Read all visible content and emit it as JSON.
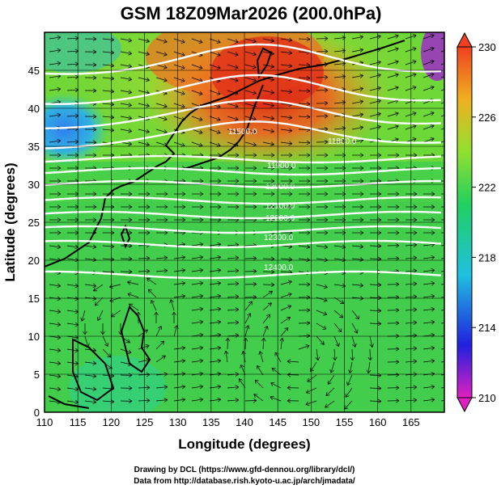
{
  "title": "GSM 18Z09Mar2026 (200.0hPa)",
  "x_axis": {
    "label": "Longitude (degrees)",
    "range": [
      110,
      170
    ],
    "ticks": [
      "110",
      "115",
      "120",
      "125",
      "130",
      "135",
      "140",
      "145",
      "150",
      "155",
      "160",
      "165"
    ]
  },
  "y_axis": {
    "label": "Latitude  (degrees)",
    "range": [
      0,
      50
    ],
    "ticks": [
      "0",
      "5",
      "10",
      "15",
      "20",
      "25",
      "30",
      "35",
      "40",
      "45"
    ]
  },
  "colorbar": {
    "range": [
      210,
      230
    ],
    "ticks": [
      "210",
      "214",
      "218",
      "222",
      "226",
      "230"
    ],
    "colors": [
      "#e020c0",
      "#2020e0",
      "#20c0e0",
      "#20d060",
      "#90e030",
      "#f0b020",
      "#f04020"
    ]
  },
  "contour_labels": [
    "11500.0",
    "11800.0",
    "11900.0",
    "12000.0",
    "12100.0",
    "12200.0",
    "12300.0",
    "12400.0"
  ],
  "credits": {
    "line1": "Drawing by DCL (https://www.gfd-dennou.org/library/dcl/)",
    "line2": "Data from http://database.rish.kyoto-u.ac.jp/arch/jmadata/"
  }
}
